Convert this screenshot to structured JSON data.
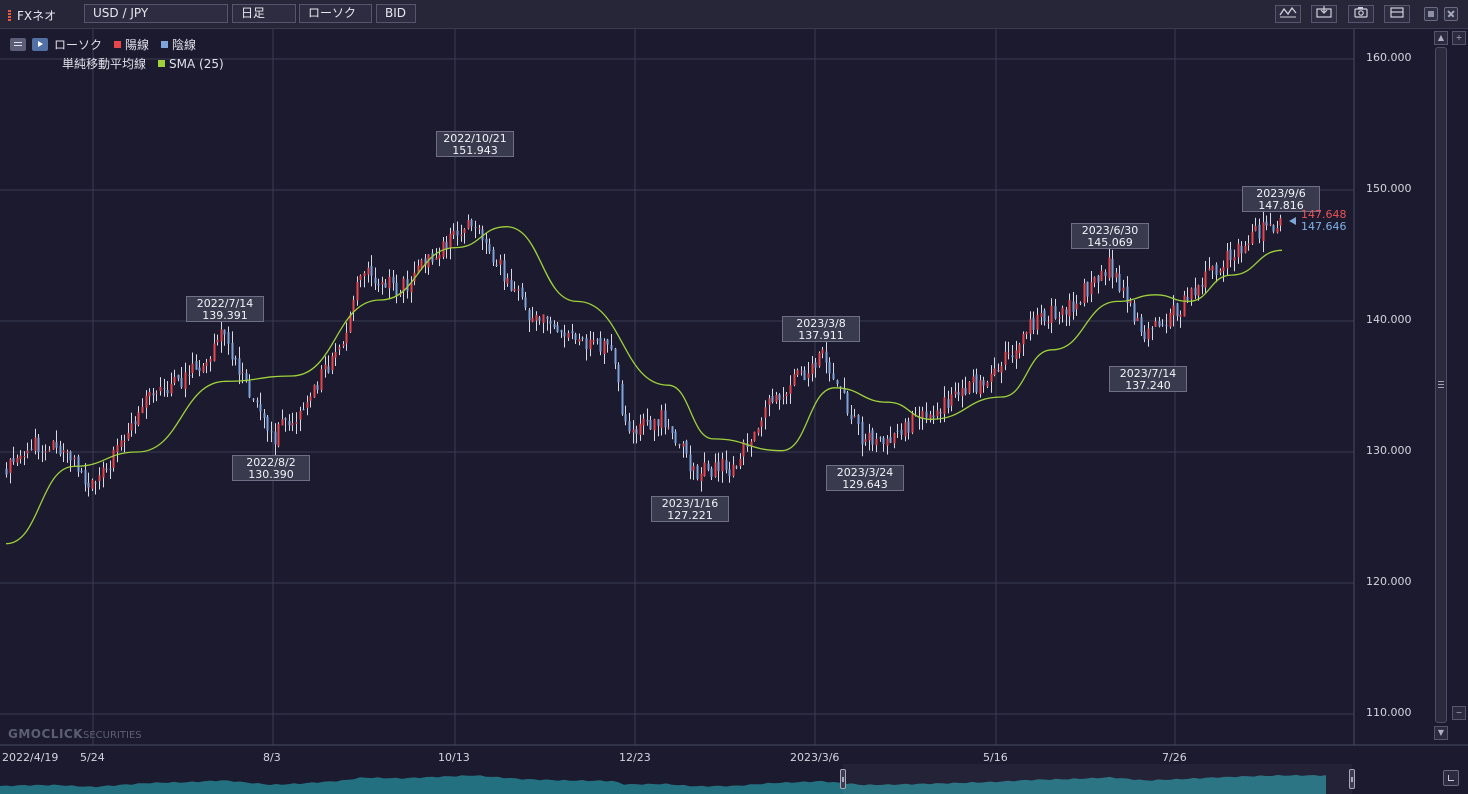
{
  "toolbar": {
    "app_title": "FXネオ",
    "symbol": "USD / JPY",
    "timeframe": "日足",
    "chart_type": "ローソク",
    "price_type": "BID",
    "icons": [
      "drawing-tools-icon",
      "indicator-icon",
      "camera-icon",
      "window-icon",
      "maximize-icon",
      "close-icon"
    ]
  },
  "legend": {
    "candle_label": "ローソク",
    "up_label": "陽線",
    "down_label": "陰線",
    "ma_label": "単純移動平均線",
    "sma_label": "SMA (25)"
  },
  "colors": {
    "up": "#e8464b",
    "down": "#7ea3d9",
    "wick": "#d7d9e4",
    "sma": "#9fd13b",
    "grid": "#3a3a52",
    "navigator": "#24808f"
  },
  "price": {
    "ask": "147.648",
    "bid": "147.646",
    "ask_color": "#ef5157",
    "bid_color": "#7fb0e6"
  },
  "callouts": [
    {
      "date": "2022/7/14",
      "value": "139.391"
    },
    {
      "date": "2022/8/2",
      "value": "130.390"
    },
    {
      "date": "2022/10/21",
      "value": "151.943"
    },
    {
      "date": "2023/1/16",
      "value": "127.221"
    },
    {
      "date": "2023/3/8",
      "value": "137.911"
    },
    {
      "date": "2023/3/24",
      "value": "129.643"
    },
    {
      "date": "2023/6/30",
      "value": "145.069"
    },
    {
      "date": "2023/7/14",
      "value": "137.240"
    },
    {
      "date": "2023/9/6",
      "value": "147.816"
    }
  ],
  "watermark": {
    "brand": "GMOCLICK",
    "sub": "SECURITIES"
  },
  "chart_data": {
    "type": "candlestick",
    "symbol": "USD / JPY",
    "ylim": [
      108,
      163
    ],
    "y_ticks": [
      "160.000",
      "150.000",
      "140.000",
      "130.000",
      "120.000",
      "110.000"
    ],
    "x_tick_labels": [
      "2022/4/19",
      "5/24",
      "8/3",
      "10/13",
      "12/23",
      "2023/3/6",
      "5/16",
      "7/26"
    ],
    "grid": true,
    "close_path": [
      [
        "2022-04-19",
        128.9
      ],
      [
        "2022-04-28",
        130.4
      ],
      [
        "2022-05-09",
        130.6
      ],
      [
        "2022-05-24",
        127.2
      ],
      [
        "2022-06-01",
        130.0
      ],
      [
        "2022-06-15",
        134.5
      ],
      [
        "2022-06-30",
        135.7
      ],
      [
        "2022-07-14",
        138.9
      ],
      [
        "2022-08-02",
        131.0
      ],
      [
        "2022-08-15",
        133.6
      ],
      [
        "2022-08-30",
        138.5
      ],
      [
        "2022-09-07",
        144.0
      ],
      [
        "2022-09-22",
        142.4
      ],
      [
        "2022-10-07",
        145.3
      ],
      [
        "2022-10-21",
        147.7
      ],
      [
        "2022-11-10",
        141.0
      ],
      [
        "2022-11-25",
        139.0
      ],
      [
        "2022-12-15",
        137.8
      ],
      [
        "2022-12-20",
        131.8
      ],
      [
        "2023-01-05",
        132.6
      ],
      [
        "2023-01-16",
        128.5
      ],
      [
        "2023-02-01",
        128.9
      ],
      [
        "2023-02-15",
        133.9
      ],
      [
        "2023-03-08",
        137.3
      ],
      [
        "2023-03-24",
        130.8
      ],
      [
        "2023-04-05",
        131.4
      ],
      [
        "2023-04-25",
        133.7
      ],
      [
        "2023-05-15",
        136.1
      ],
      [
        "2023-05-30",
        139.8
      ],
      [
        "2023-06-15",
        141.3
      ],
      [
        "2023-06-30",
        144.3
      ],
      [
        "2023-07-14",
        138.8
      ],
      [
        "2023-07-28",
        141.2
      ],
      [
        "2023-08-10",
        144.0
      ],
      [
        "2023-08-25",
        146.4
      ],
      [
        "2023-09-06",
        147.7
      ]
    ],
    "sma_path": [
      [
        "2022-04-19",
        123.0
      ],
      [
        "2022-05-16",
        128.9
      ],
      [
        "2022-06-10",
        130.0
      ],
      [
        "2022-07-15",
        135.4
      ],
      [
        "2022-08-10",
        135.8
      ],
      [
        "2022-09-14",
        141.6
      ],
      [
        "2022-10-14",
        145.6
      ],
      [
        "2022-11-03",
        147.2
      ],
      [
        "2022-12-01",
        141.5
      ],
      [
        "2023-01-06",
        135.1
      ],
      [
        "2023-01-24",
        131.0
      ],
      [
        "2023-02-20",
        130.1
      ],
      [
        "2023-03-13",
        134.9
      ],
      [
        "2023-04-03",
        133.8
      ],
      [
        "2023-04-20",
        132.5
      ],
      [
        "2023-05-18",
        134.2
      ],
      [
        "2023-06-07",
        137.8
      ],
      [
        "2023-07-03",
        141.5
      ],
      [
        "2023-07-18",
        142.0
      ],
      [
        "2023-07-31",
        141.5
      ],
      [
        "2023-08-17",
        143.5
      ],
      [
        "2023-09-06",
        145.4
      ]
    ],
    "series": [
      {
        "name": "ローソク",
        "type": "candlestick"
      },
      {
        "name": "SMA (25)",
        "type": "line"
      }
    ]
  }
}
